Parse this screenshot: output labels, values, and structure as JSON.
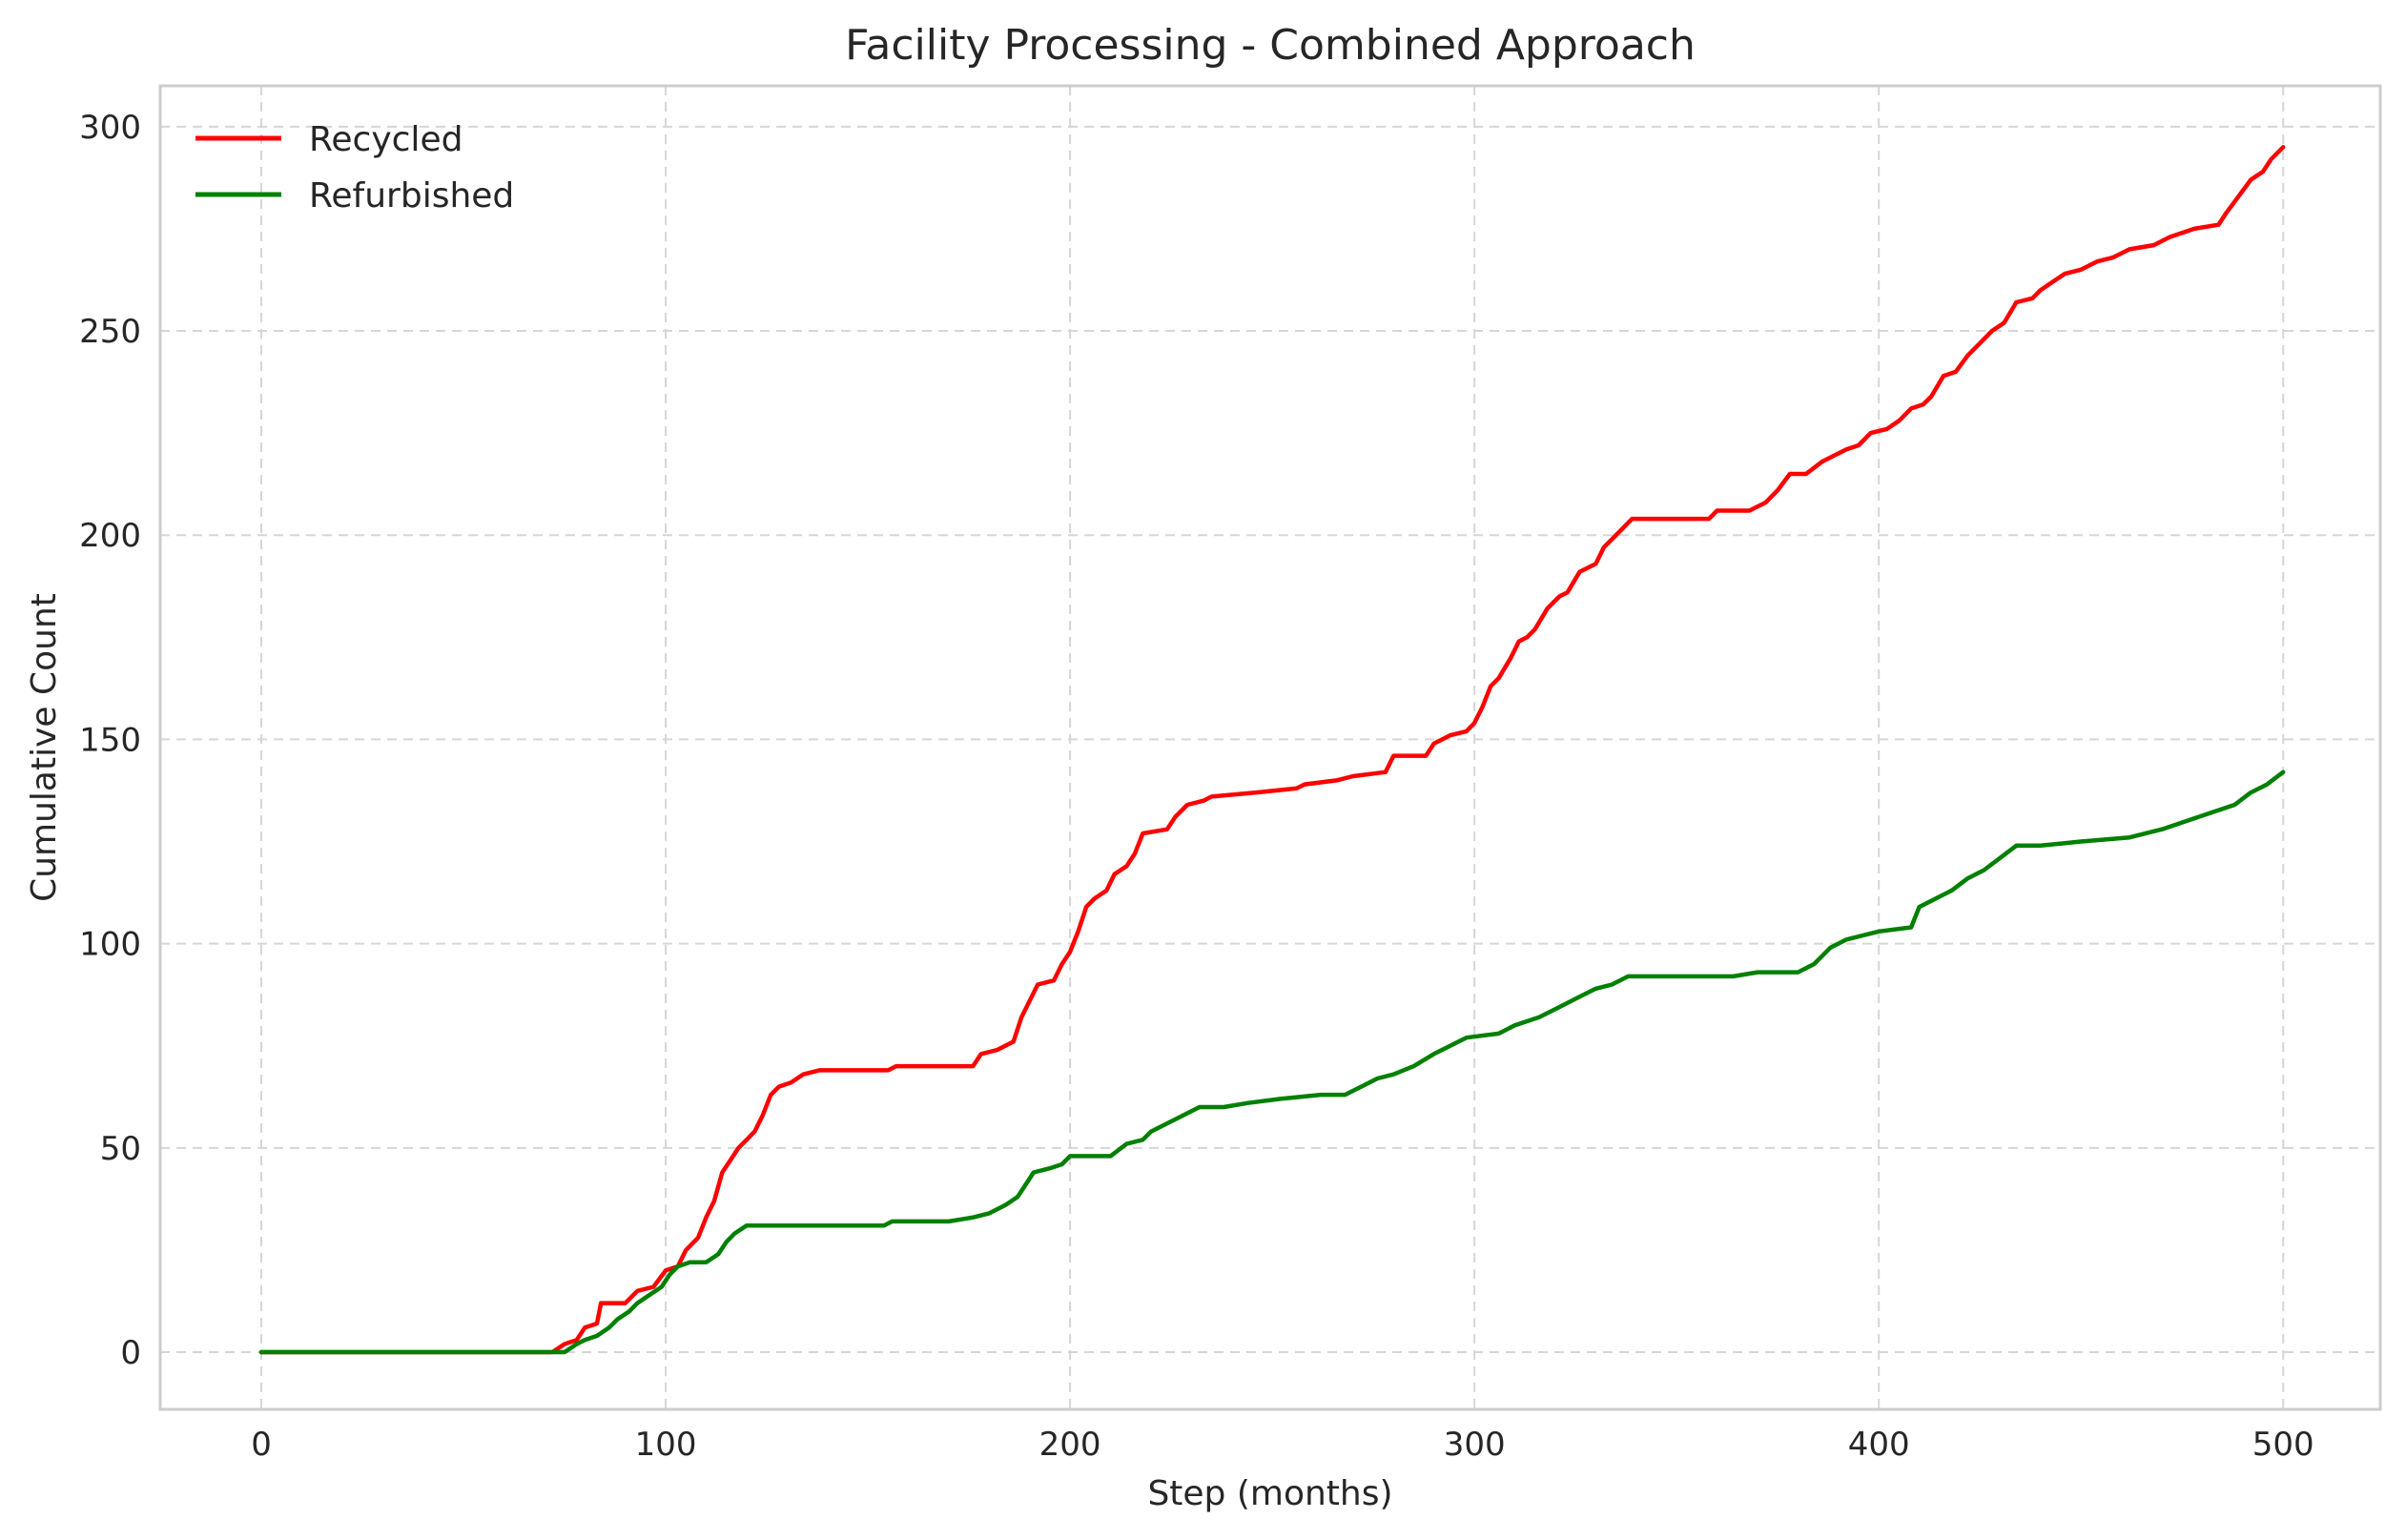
{
  "chart_data": {
    "type": "line",
    "title": "Facility Processing - Combined Approach",
    "xlabel": "Step (months)",
    "ylabel": "Cumulative Count",
    "xlim": [
      -25,
      524
    ],
    "ylim": [
      -14,
      310
    ],
    "xticks": [
      0,
      100,
      200,
      300,
      400,
      500
    ],
    "yticks": [
      0,
      50,
      100,
      150,
      200,
      250,
      300
    ],
    "grid": true,
    "legend_position": "top-left",
    "series": [
      {
        "name": "Recycled",
        "color": "#ff0000",
        "points": [
          [
            0,
            0
          ],
          [
            72,
            0
          ],
          [
            75,
            2
          ],
          [
            78,
            3
          ],
          [
            80,
            6
          ],
          [
            83,
            7
          ],
          [
            84,
            12
          ],
          [
            88,
            12
          ],
          [
            90,
            12
          ],
          [
            93,
            15
          ],
          [
            97,
            16
          ],
          [
            100,
            20
          ],
          [
            103,
            21
          ],
          [
            105,
            25
          ],
          [
            108,
            28
          ],
          [
            110,
            33
          ],
          [
            112,
            37
          ],
          [
            114,
            44
          ],
          [
            116,
            47
          ],
          [
            118,
            50
          ],
          [
            120,
            52
          ],
          [
            122,
            54
          ],
          [
            124,
            58
          ],
          [
            126,
            63
          ],
          [
            128,
            65
          ],
          [
            131,
            66
          ],
          [
            134,
            68
          ],
          [
            138,
            69
          ],
          [
            155,
            69
          ],
          [
            157,
            70
          ],
          [
            176,
            70
          ],
          [
            178,
            73
          ],
          [
            182,
            74
          ],
          [
            186,
            76
          ],
          [
            188,
            82
          ],
          [
            190,
            86
          ],
          [
            192,
            90
          ],
          [
            196,
            91
          ],
          [
            198,
            95
          ],
          [
            200,
            98
          ],
          [
            202,
            103
          ],
          [
            204,
            109
          ],
          [
            206,
            111
          ],
          [
            209,
            113
          ],
          [
            211,
            117
          ],
          [
            214,
            119
          ],
          [
            216,
            122
          ],
          [
            218,
            127
          ],
          [
            224,
            128
          ],
          [
            226,
            131
          ],
          [
            229,
            134
          ],
          [
            233,
            135
          ],
          [
            235,
            136
          ],
          [
            246,
            137
          ],
          [
            256,
            138
          ],
          [
            258,
            139
          ],
          [
            266,
            140
          ],
          [
            270,
            141
          ],
          [
            278,
            142
          ],
          [
            280,
            146
          ],
          [
            288,
            146
          ],
          [
            290,
            149
          ],
          [
            294,
            151
          ],
          [
            298,
            152
          ],
          [
            300,
            154
          ],
          [
            302,
            158
          ],
          [
            304,
            163
          ],
          [
            306,
            165
          ],
          [
            309,
            170
          ],
          [
            311,
            174
          ],
          [
            313,
            175
          ],
          [
            315,
            177
          ],
          [
            318,
            182
          ],
          [
            321,
            185
          ],
          [
            323,
            186
          ],
          [
            326,
            191
          ],
          [
            330,
            193
          ],
          [
            332,
            197
          ],
          [
            336,
            201
          ],
          [
            339,
            204
          ],
          [
            350,
            204
          ],
          [
            358,
            204
          ],
          [
            360,
            206
          ],
          [
            368,
            206
          ],
          [
            372,
            208
          ],
          [
            375,
            211
          ],
          [
            378,
            215
          ],
          [
            382,
            215
          ],
          [
            386,
            218
          ],
          [
            388,
            219
          ],
          [
            392,
            221
          ],
          [
            395,
            222
          ],
          [
            398,
            225
          ],
          [
            402,
            226
          ],
          [
            405,
            228
          ],
          [
            408,
            231
          ],
          [
            411,
            232
          ],
          [
            413,
            234
          ],
          [
            416,
            239
          ],
          [
            419,
            240
          ],
          [
            422,
            244
          ],
          [
            425,
            247
          ],
          [
            428,
            250
          ],
          [
            431,
            252
          ],
          [
            434,
            257
          ],
          [
            438,
            258
          ],
          [
            440,
            260
          ],
          [
            443,
            262
          ],
          [
            446,
            264
          ],
          [
            450,
            265
          ],
          [
            454,
            267
          ],
          [
            458,
            268
          ],
          [
            462,
            270
          ],
          [
            468,
            271
          ],
          [
            472,
            273
          ],
          [
            478,
            275
          ],
          [
            484,
            276
          ],
          [
            486,
            279
          ],
          [
            489,
            283
          ],
          [
            492,
            287
          ],
          [
            495,
            289
          ],
          [
            497,
            292
          ],
          [
            500,
            295
          ]
        ]
      },
      {
        "name": "Refurbished",
        "color": "#008000",
        "points": [
          [
            0,
            0
          ],
          [
            75,
            0
          ],
          [
            78,
            2
          ],
          [
            80,
            3
          ],
          [
            83,
            4
          ],
          [
            86,
            6
          ],
          [
            88,
            8
          ],
          [
            91,
            10
          ],
          [
            93,
            12
          ],
          [
            96,
            14
          ],
          [
            99,
            16
          ],
          [
            101,
            19
          ],
          [
            103,
            21
          ],
          [
            106,
            22
          ],
          [
            110,
            22
          ],
          [
            113,
            24
          ],
          [
            115,
            27
          ],
          [
            117,
            29
          ],
          [
            120,
            31
          ],
          [
            130,
            31
          ],
          [
            154,
            31
          ],
          [
            156,
            32
          ],
          [
            170,
            32
          ],
          [
            176,
            33
          ],
          [
            180,
            34
          ],
          [
            184,
            36
          ],
          [
            187,
            38
          ],
          [
            189,
            41
          ],
          [
            191,
            44
          ],
          [
            195,
            45
          ],
          [
            198,
            46
          ],
          [
            200,
            48
          ],
          [
            210,
            48
          ],
          [
            214,
            51
          ],
          [
            218,
            52
          ],
          [
            220,
            54
          ],
          [
            224,
            56
          ],
          [
            228,
            58
          ],
          [
            232,
            60
          ],
          [
            238,
            60
          ],
          [
            244,
            61
          ],
          [
            252,
            62
          ],
          [
            262,
            63
          ],
          [
            268,
            63
          ],
          [
            272,
            65
          ],
          [
            276,
            67
          ],
          [
            280,
            68
          ],
          [
            285,
            70
          ],
          [
            290,
            73
          ],
          [
            294,
            75
          ],
          [
            298,
            77
          ],
          [
            306,
            78
          ],
          [
            310,
            80
          ],
          [
            316,
            82
          ],
          [
            320,
            84
          ],
          [
            324,
            86
          ],
          [
            330,
            89
          ],
          [
            334,
            90
          ],
          [
            338,
            92
          ],
          [
            350,
            92
          ],
          [
            364,
            92
          ],
          [
            370,
            93
          ],
          [
            380,
            93
          ],
          [
            384,
            95
          ],
          [
            388,
            99
          ],
          [
            392,
            101
          ],
          [
            396,
            102
          ],
          [
            400,
            103
          ],
          [
            408,
            104
          ],
          [
            410,
            109
          ],
          [
            414,
            111
          ],
          [
            418,
            113
          ],
          [
            422,
            116
          ],
          [
            426,
            118
          ],
          [
            430,
            121
          ],
          [
            434,
            124
          ],
          [
            440,
            124
          ],
          [
            450,
            125
          ],
          [
            462,
            126
          ],
          [
            470,
            128
          ],
          [
            476,
            130
          ],
          [
            482,
            132
          ],
          [
            488,
            134
          ],
          [
            492,
            137
          ],
          [
            496,
            139
          ],
          [
            500,
            142
          ]
        ]
      }
    ]
  }
}
